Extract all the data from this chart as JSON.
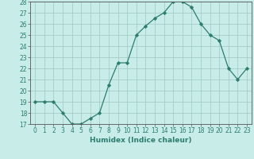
{
  "x": [
    0,
    1,
    2,
    3,
    4,
    5,
    6,
    7,
    8,
    9,
    10,
    11,
    12,
    13,
    14,
    15,
    16,
    17,
    18,
    19,
    20,
    21,
    22,
    23
  ],
  "y": [
    19,
    19,
    19,
    18,
    17,
    17,
    17.5,
    18,
    20.5,
    22.5,
    22.5,
    25,
    25.8,
    26.5,
    27,
    28,
    28,
    27.5,
    26,
    25,
    24.5,
    22,
    21,
    22
  ],
  "line_color": "#2d7d6e",
  "marker_color": "#2d7d6e",
  "bg_color": "#c8ece8",
  "grid_color": "#a0c8c4",
  "xlabel": "Humidex (Indice chaleur)",
  "ylim": [
    17,
    28
  ],
  "xlim_min": -0.5,
  "xlim_max": 23.5,
  "yticks": [
    17,
    18,
    19,
    20,
    21,
    22,
    23,
    24,
    25,
    26,
    27,
    28
  ],
  "xticks": [
    0,
    1,
    2,
    3,
    4,
    5,
    6,
    7,
    8,
    9,
    10,
    11,
    12,
    13,
    14,
    15,
    16,
    17,
    18,
    19,
    20,
    21,
    22,
    23
  ],
  "tick_fontsize": 5.5,
  "xlabel_fontsize": 6.5
}
